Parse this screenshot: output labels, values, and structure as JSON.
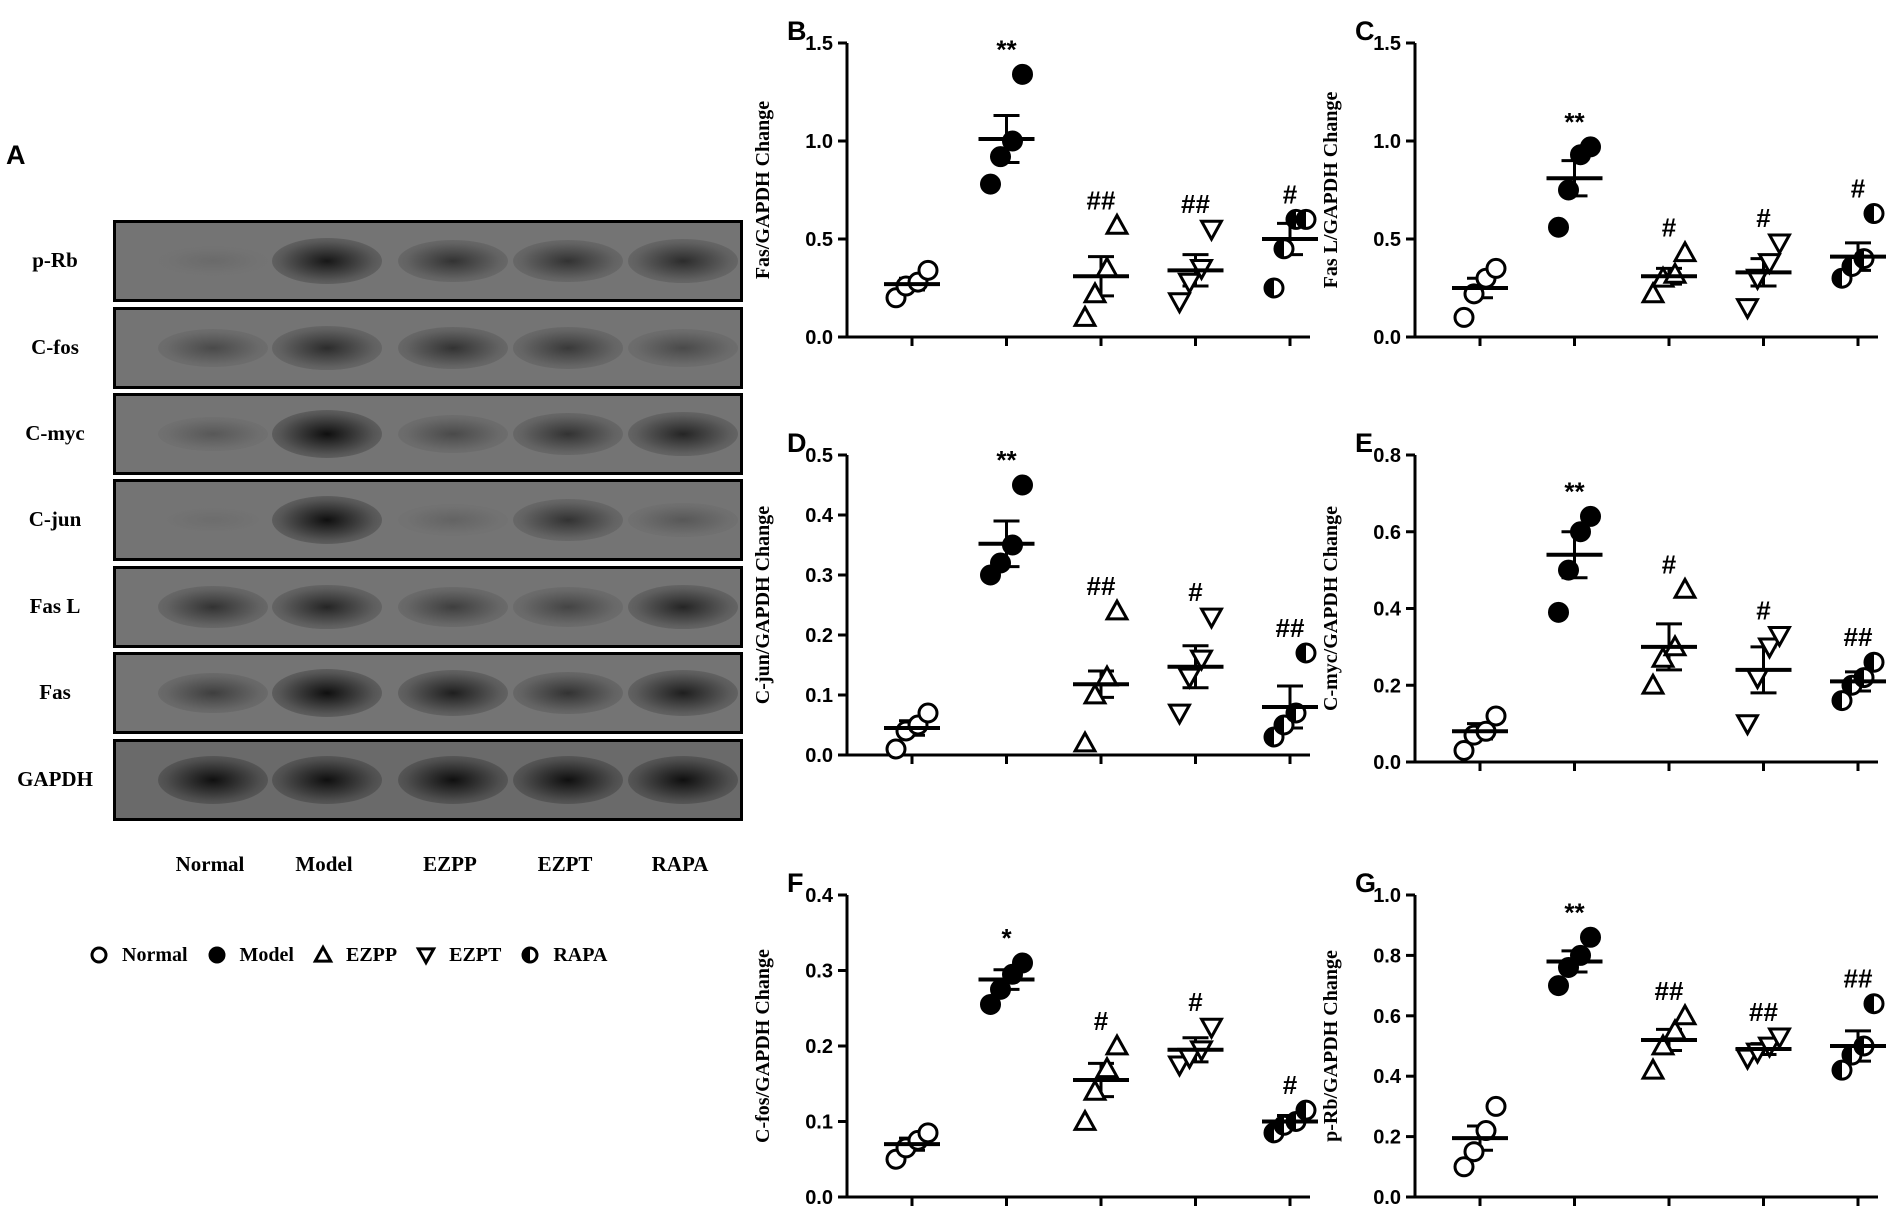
{
  "panel_a": {
    "letter": "A",
    "rows": [
      "p-Rb",
      "C-fos",
      "C-myc",
      "C-jun",
      "Fas L",
      "Fas",
      "GAPDH"
    ],
    "lanes": [
      "Normal",
      "Model",
      "EZPP",
      "EZPT",
      "RAPA"
    ],
    "band_intensity": [
      [
        0.15,
        0.95,
        0.75,
        0.75,
        0.8
      ],
      [
        0.55,
        0.8,
        0.75,
        0.7,
        0.55
      ],
      [
        0.4,
        1.0,
        0.55,
        0.75,
        0.85
      ],
      [
        0.1,
        1.0,
        0.25,
        0.75,
        0.4
      ],
      [
        0.75,
        0.85,
        0.65,
        0.6,
        0.85
      ],
      [
        0.65,
        1.0,
        0.9,
        0.75,
        0.9
      ],
      [
        1.0,
        1.0,
        1.0,
        1.0,
        1.0
      ]
    ]
  },
  "legend": [
    {
      "label": "Normal",
      "marker": "open-circle"
    },
    {
      "label": "Model",
      "marker": "filled-circle"
    },
    {
      "label": "EZPP",
      "marker": "open-triangle-up"
    },
    {
      "label": "EZPT",
      "marker": "open-triangle-down"
    },
    {
      "label": "RAPA",
      "marker": "half-filled-circle"
    }
  ],
  "chart_data": [
    {
      "letter": "B",
      "type": "scatter",
      "ylabel": "Fas/GAPDH Change",
      "ylim": [
        0,
        1.5
      ],
      "yticks": [
        "0.0",
        "0.5",
        "1.0",
        "1.5"
      ],
      "groups": [
        {
          "name": "Normal",
          "marker": "open-circle",
          "points": [
            0.2,
            0.26,
            0.28,
            0.34
          ],
          "mean": 0.27,
          "sem": 0.03,
          "sig": ""
        },
        {
          "name": "Model",
          "marker": "filled-circle",
          "points": [
            0.78,
            0.92,
            1.0,
            1.34
          ],
          "mean": 1.01,
          "sem": 0.12,
          "sig": "**"
        },
        {
          "name": "EZPP",
          "marker": "open-triangle-up",
          "points": [
            0.1,
            0.22,
            0.35,
            0.57
          ],
          "mean": 0.31,
          "sem": 0.1,
          "sig": "##"
        },
        {
          "name": "EZPT",
          "marker": "open-triangle-down",
          "points": [
            0.18,
            0.28,
            0.35,
            0.55
          ],
          "mean": 0.34,
          "sem": 0.08,
          "sig": "##"
        },
        {
          "name": "RAPA",
          "marker": "half-filled-circle",
          "points": [
            0.25,
            0.45,
            0.6,
            0.6
          ],
          "mean": 0.5,
          "sem": 0.08,
          "sig": "#"
        }
      ]
    },
    {
      "letter": "C",
      "type": "scatter",
      "ylabel": "Fas L/GAPDH Change",
      "ylim": [
        0,
        1.5
      ],
      "yticks": [
        "0.0",
        "0.5",
        "1.0",
        "1.5"
      ],
      "groups": [
        {
          "name": "Normal",
          "marker": "open-circle",
          "points": [
            0.1,
            0.22,
            0.3,
            0.35
          ],
          "mean": 0.25,
          "sem": 0.05,
          "sig": ""
        },
        {
          "name": "Model",
          "marker": "filled-circle",
          "points": [
            0.56,
            0.75,
            0.93,
            0.97
          ],
          "mean": 0.81,
          "sem": 0.09,
          "sig": "**"
        },
        {
          "name": "EZPP",
          "marker": "open-triangle-up",
          "points": [
            0.22,
            0.3,
            0.32,
            0.43
          ],
          "mean": 0.31,
          "sem": 0.04,
          "sig": "#"
        },
        {
          "name": "EZPT",
          "marker": "open-triangle-down",
          "points": [
            0.15,
            0.3,
            0.38,
            0.48
          ],
          "mean": 0.33,
          "sem": 0.07,
          "sig": "#"
        },
        {
          "name": "RAPA",
          "marker": "half-filled-circle",
          "points": [
            0.3,
            0.36,
            0.4,
            0.63
          ],
          "mean": 0.41,
          "sem": 0.07,
          "sig": "#"
        }
      ]
    },
    {
      "letter": "D",
      "type": "scatter",
      "ylabel": "C-jun/GAPDH Change",
      "ylim": [
        0,
        0.5
      ],
      "yticks": [
        "0.0",
        "0.1",
        "0.2",
        "0.3",
        "0.4",
        "0.5"
      ],
      "groups": [
        {
          "name": "Normal",
          "marker": "open-circle",
          "points": [
            0.01,
            0.04,
            0.05,
            0.07
          ],
          "mean": 0.045,
          "sem": 0.012,
          "sig": ""
        },
        {
          "name": "Model",
          "marker": "filled-circle",
          "points": [
            0.3,
            0.32,
            0.35,
            0.45
          ],
          "mean": 0.352,
          "sem": 0.038,
          "sig": "**"
        },
        {
          "name": "EZPP",
          "marker": "open-triangle-up",
          "points": [
            0.02,
            0.1,
            0.13,
            0.24
          ],
          "mean": 0.118,
          "sem": 0.022,
          "sig": "##"
        },
        {
          "name": "EZPT",
          "marker": "open-triangle-down",
          "points": [
            0.07,
            0.13,
            0.16,
            0.23
          ],
          "mean": 0.147,
          "sem": 0.035,
          "sig": "#"
        },
        {
          "name": "RAPA",
          "marker": "half-filled-circle",
          "points": [
            0.03,
            0.05,
            0.07,
            0.17
          ],
          "mean": 0.08,
          "sem": 0.035,
          "sig": "##"
        }
      ]
    },
    {
      "letter": "E",
      "type": "scatter",
      "ylabel": "C-myc/GAPDH Change",
      "ylim": [
        0,
        0.8
      ],
      "yticks": [
        "0.0",
        "0.2",
        "0.4",
        "0.6",
        "0.8"
      ],
      "groups": [
        {
          "name": "Normal",
          "marker": "open-circle",
          "points": [
            0.03,
            0.07,
            0.08,
            0.12
          ],
          "mean": 0.08,
          "sem": 0.02,
          "sig": ""
        },
        {
          "name": "Model",
          "marker": "filled-circle",
          "points": [
            0.39,
            0.5,
            0.6,
            0.64
          ],
          "mean": 0.54,
          "sem": 0.06,
          "sig": "**"
        },
        {
          "name": "EZPP",
          "marker": "open-triangle-up",
          "points": [
            0.2,
            0.27,
            0.3,
            0.45
          ],
          "mean": 0.3,
          "sem": 0.06,
          "sig": "#"
        },
        {
          "name": "EZPT",
          "marker": "open-triangle-down",
          "points": [
            0.1,
            0.22,
            0.3,
            0.33
          ],
          "mean": 0.24,
          "sem": 0.06,
          "sig": "#"
        },
        {
          "name": "RAPA",
          "marker": "half-filled-circle",
          "points": [
            0.16,
            0.2,
            0.22,
            0.26
          ],
          "mean": 0.21,
          "sem": 0.025,
          "sig": "##"
        }
      ]
    },
    {
      "letter": "F",
      "type": "scatter",
      "ylabel": "C-fos/GAPDH Change",
      "ylim": [
        0,
        0.4
      ],
      "yticks": [
        "0.0",
        "0.1",
        "0.2",
        "0.3",
        "0.4"
      ],
      "groups": [
        {
          "name": "Normal",
          "marker": "open-circle",
          "points": [
            0.05,
            0.065,
            0.075,
            0.085
          ],
          "mean": 0.07,
          "sem": 0.008,
          "sig": ""
        },
        {
          "name": "Model",
          "marker": "filled-circle",
          "points": [
            0.255,
            0.275,
            0.295,
            0.31
          ],
          "mean": 0.288,
          "sem": 0.013,
          "sig": "*"
        },
        {
          "name": "EZPP",
          "marker": "open-triangle-up",
          "points": [
            0.1,
            0.14,
            0.17,
            0.2
          ],
          "mean": 0.155,
          "sem": 0.022,
          "sig": "#"
        },
        {
          "name": "EZPT",
          "marker": "open-triangle-down",
          "points": [
            0.175,
            0.185,
            0.195,
            0.225
          ],
          "mean": 0.195,
          "sem": 0.016,
          "sig": "#"
        },
        {
          "name": "RAPA",
          "marker": "half-filled-circle",
          "points": [
            0.085,
            0.095,
            0.1,
            0.115
          ],
          "mean": 0.1,
          "sem": 0.008,
          "sig": "#"
        }
      ]
    },
    {
      "letter": "G",
      "type": "scatter",
      "ylabel": "p-Rb/GAPDH Change",
      "ylim": [
        0,
        1.0
      ],
      "yticks": [
        "0.0",
        "0.2",
        "0.4",
        "0.6",
        "0.8",
        "1.0"
      ],
      "groups": [
        {
          "name": "Normal",
          "marker": "open-circle",
          "points": [
            0.1,
            0.15,
            0.22,
            0.3
          ],
          "mean": 0.195,
          "sem": 0.04,
          "sig": ""
        },
        {
          "name": "Model",
          "marker": "filled-circle",
          "points": [
            0.7,
            0.76,
            0.8,
            0.86
          ],
          "mean": 0.78,
          "sem": 0.035,
          "sig": "**"
        },
        {
          "name": "EZPP",
          "marker": "open-triangle-up",
          "points": [
            0.42,
            0.5,
            0.55,
            0.6
          ],
          "mean": 0.52,
          "sem": 0.035,
          "sig": "##"
        },
        {
          "name": "EZPT",
          "marker": "open-triangle-down",
          "points": [
            0.46,
            0.48,
            0.5,
            0.53
          ],
          "mean": 0.49,
          "sem": 0.018,
          "sig": "##"
        },
        {
          "name": "RAPA",
          "marker": "half-filled-circle",
          "points": [
            0.42,
            0.47,
            0.5,
            0.64
          ],
          "mean": 0.5,
          "sem": 0.05,
          "sig": "##"
        }
      ]
    }
  ]
}
